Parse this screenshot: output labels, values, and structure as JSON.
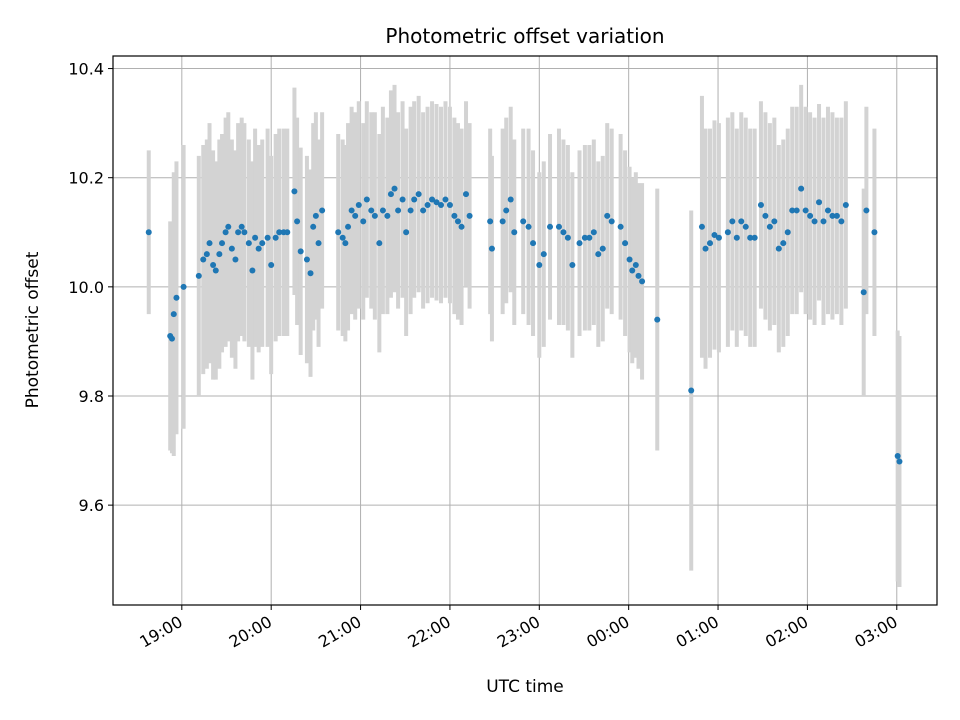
{
  "chart_data": {
    "type": "scatter",
    "title": "Photometric offset variation",
    "xlabel": "UTC time",
    "ylabel": "Photometric offset",
    "x_unit": "hours",
    "xlim": [
      18.23,
      27.45
    ],
    "ylim": [
      9.417,
      10.423
    ],
    "x_ticks": [
      {
        "value": 19,
        "label": "19:00"
      },
      {
        "value": 20,
        "label": "20:00"
      },
      {
        "value": 21,
        "label": "21:00"
      },
      {
        "value": 22,
        "label": "22:00"
      },
      {
        "value": 23,
        "label": "23:00"
      },
      {
        "value": 24,
        "label": "00:00"
      },
      {
        "value": 25,
        "label": "01:00"
      },
      {
        "value": 26,
        "label": "02:00"
      },
      {
        "value": 27,
        "label": "03:00"
      }
    ],
    "y_ticks": [
      {
        "value": 9.6,
        "label": "9.6"
      },
      {
        "value": 9.8,
        "label": "9.8"
      },
      {
        "value": 10.0,
        "label": "10.0"
      },
      {
        "value": 10.2,
        "label": "10.2"
      },
      {
        "value": 10.4,
        "label": "10.4"
      }
    ],
    "grid": true,
    "colors": {
      "point": "#1f77b4",
      "errorbar": "#d3d3d3",
      "grid": "#b0b0b0"
    },
    "points": [
      [
        18.63,
        10.1,
        0.15
      ],
      [
        18.87,
        9.91,
        0.21
      ],
      [
        18.89,
        9.905,
        0.21
      ],
      [
        18.91,
        9.95,
        0.26
      ],
      [
        18.94,
        9.98,
        0.25
      ],
      [
        19.02,
        10.0,
        0.26
      ],
      [
        19.19,
        10.02,
        0.22
      ],
      [
        19.24,
        10.05,
        0.21
      ],
      [
        19.28,
        10.06,
        0.21
      ],
      [
        19.31,
        10.08,
        0.22
      ],
      [
        19.35,
        10.04,
        0.21
      ],
      [
        19.38,
        10.03,
        0.2
      ],
      [
        19.42,
        10.06,
        0.21
      ],
      [
        19.45,
        10.08,
        0.2
      ],
      [
        19.49,
        10.1,
        0.21
      ],
      [
        19.52,
        10.11,
        0.21
      ],
      [
        19.56,
        10.07,
        0.2
      ],
      [
        19.6,
        10.05,
        0.2
      ],
      [
        19.63,
        10.1,
        0.2
      ],
      [
        19.67,
        10.11,
        0.2
      ],
      [
        19.7,
        10.1,
        0.2
      ],
      [
        19.75,
        10.08,
        0.19
      ],
      [
        19.79,
        10.03,
        0.2
      ],
      [
        19.82,
        10.09,
        0.2
      ],
      [
        19.86,
        10.07,
        0.19
      ],
      [
        19.9,
        10.08,
        0.19
      ],
      [
        19.96,
        10.09,
        0.2
      ],
      [
        20.0,
        10.04,
        0.2
      ],
      [
        20.05,
        10.09,
        0.19
      ],
      [
        20.09,
        10.1,
        0.19
      ],
      [
        20.14,
        10.1,
        0.19
      ],
      [
        20.18,
        10.1,
        0.19
      ],
      [
        20.26,
        10.175,
        0.19
      ],
      [
        20.29,
        10.12,
        0.19
      ],
      [
        20.33,
        10.065,
        0.19
      ],
      [
        20.4,
        10.05,
        0.19
      ],
      [
        20.44,
        10.025,
        0.19
      ],
      [
        20.47,
        10.11,
        0.19
      ],
      [
        20.5,
        10.13,
        0.19
      ],
      [
        20.53,
        10.08,
        0.19
      ],
      [
        20.57,
        10.14,
        0.18
      ],
      [
        20.75,
        10.1,
        0.18
      ],
      [
        20.8,
        10.09,
        0.18
      ],
      [
        20.83,
        10.08,
        0.18
      ],
      [
        20.86,
        10.11,
        0.19
      ],
      [
        20.9,
        10.14,
        0.19
      ],
      [
        20.94,
        10.13,
        0.19
      ],
      [
        20.98,
        10.15,
        0.19
      ],
      [
        21.03,
        10.12,
        0.18
      ],
      [
        21.07,
        10.16,
        0.18
      ],
      [
        21.12,
        10.14,
        0.18
      ],
      [
        21.16,
        10.13,
        0.19
      ],
      [
        21.21,
        10.08,
        0.2
      ],
      [
        21.25,
        10.14,
        0.19
      ],
      [
        21.3,
        10.13,
        0.18
      ],
      [
        21.34,
        10.17,
        0.19
      ],
      [
        21.38,
        10.18,
        0.19
      ],
      [
        21.42,
        10.14,
        0.18
      ],
      [
        21.47,
        10.16,
        0.18
      ],
      [
        21.51,
        10.1,
        0.19
      ],
      [
        21.56,
        10.14,
        0.19
      ],
      [
        21.6,
        10.16,
        0.18
      ],
      [
        21.65,
        10.17,
        0.18
      ],
      [
        21.7,
        10.14,
        0.18
      ],
      [
        21.75,
        10.15,
        0.18
      ],
      [
        21.8,
        10.16,
        0.18
      ],
      [
        21.85,
        10.155,
        0.18
      ],
      [
        21.9,
        10.15,
        0.18
      ],
      [
        21.95,
        10.16,
        0.18
      ],
      [
        22.0,
        10.15,
        0.18
      ],
      [
        22.05,
        10.13,
        0.18
      ],
      [
        22.09,
        10.12,
        0.18
      ],
      [
        22.13,
        10.11,
        0.18
      ],
      [
        22.18,
        10.17,
        0.17
      ],
      [
        22.22,
        10.13,
        0.17
      ],
      [
        22.45,
        10.12,
        0.17
      ],
      [
        22.47,
        10.07,
        0.17
      ],
      [
        22.59,
        10.12,
        0.17
      ],
      [
        22.63,
        10.14,
        0.17
      ],
      [
        22.68,
        10.16,
        0.17
      ],
      [
        22.72,
        10.1,
        0.17
      ],
      [
        22.82,
        10.12,
        0.17
      ],
      [
        22.88,
        10.11,
        0.18
      ],
      [
        22.93,
        10.08,
        0.17
      ],
      [
        23.0,
        10.04,
        0.17
      ],
      [
        23.05,
        10.06,
        0.17
      ],
      [
        23.12,
        10.11,
        0.17
      ],
      [
        23.22,
        10.11,
        0.18
      ],
      [
        23.27,
        10.1,
        0.17
      ],
      [
        23.32,
        10.09,
        0.17
      ],
      [
        23.37,
        10.04,
        0.17
      ],
      [
        23.45,
        10.08,
        0.17
      ],
      [
        23.51,
        10.09,
        0.17
      ],
      [
        23.56,
        10.09,
        0.17
      ],
      [
        23.61,
        10.1,
        0.17
      ],
      [
        23.66,
        10.06,
        0.17
      ],
      [
        23.71,
        10.07,
        0.17
      ],
      [
        23.76,
        10.13,
        0.17
      ],
      [
        23.81,
        10.12,
        0.17
      ],
      [
        23.91,
        10.11,
        0.17
      ],
      [
        23.96,
        10.08,
        0.17
      ],
      [
        24.01,
        10.05,
        0.17
      ],
      [
        24.04,
        10.03,
        0.17
      ],
      [
        24.08,
        10.04,
        0.17
      ],
      [
        24.11,
        10.02,
        0.17
      ],
      [
        24.15,
        10.01,
        0.18
      ],
      [
        24.32,
        9.94,
        0.24
      ],
      [
        24.7,
        9.81,
        0.33
      ],
      [
        24.82,
        10.11,
        0.24
      ],
      [
        24.86,
        10.07,
        0.22
      ],
      [
        24.91,
        10.08,
        0.21
      ],
      [
        24.96,
        10.095,
        0.21
      ],
      [
        25.01,
        10.09,
        0.21
      ],
      [
        25.11,
        10.1,
        0.21
      ],
      [
        25.16,
        10.12,
        0.2
      ],
      [
        25.21,
        10.09,
        0.2
      ],
      [
        25.26,
        10.12,
        0.2
      ],
      [
        25.31,
        10.11,
        0.2
      ],
      [
        25.36,
        10.09,
        0.2
      ],
      [
        25.41,
        10.09,
        0.2
      ],
      [
        25.48,
        10.15,
        0.19
      ],
      [
        25.53,
        10.13,
        0.19
      ],
      [
        25.58,
        10.11,
        0.19
      ],
      [
        25.63,
        10.12,
        0.19
      ],
      [
        25.68,
        10.07,
        0.19
      ],
      [
        25.73,
        10.08,
        0.19
      ],
      [
        25.78,
        10.1,
        0.19
      ],
      [
        25.83,
        10.14,
        0.19
      ],
      [
        25.88,
        10.14,
        0.19
      ],
      [
        25.93,
        10.18,
        0.19
      ],
      [
        25.98,
        10.14,
        0.19
      ],
      [
        26.03,
        10.13,
        0.19
      ],
      [
        26.08,
        10.12,
        0.19
      ],
      [
        26.13,
        10.155,
        0.18
      ],
      [
        26.18,
        10.12,
        0.19
      ],
      [
        26.23,
        10.14,
        0.19
      ],
      [
        26.28,
        10.13,
        0.19
      ],
      [
        26.33,
        10.13,
        0.18
      ],
      [
        26.38,
        10.12,
        0.19
      ],
      [
        26.43,
        10.15,
        0.19
      ],
      [
        26.63,
        9.99,
        0.19
      ],
      [
        26.66,
        10.14,
        0.19
      ],
      [
        26.75,
        10.1,
        0.19
      ],
      [
        27.01,
        9.69,
        0.23
      ],
      [
        27.03,
        9.68,
        0.23
      ]
    ]
  }
}
